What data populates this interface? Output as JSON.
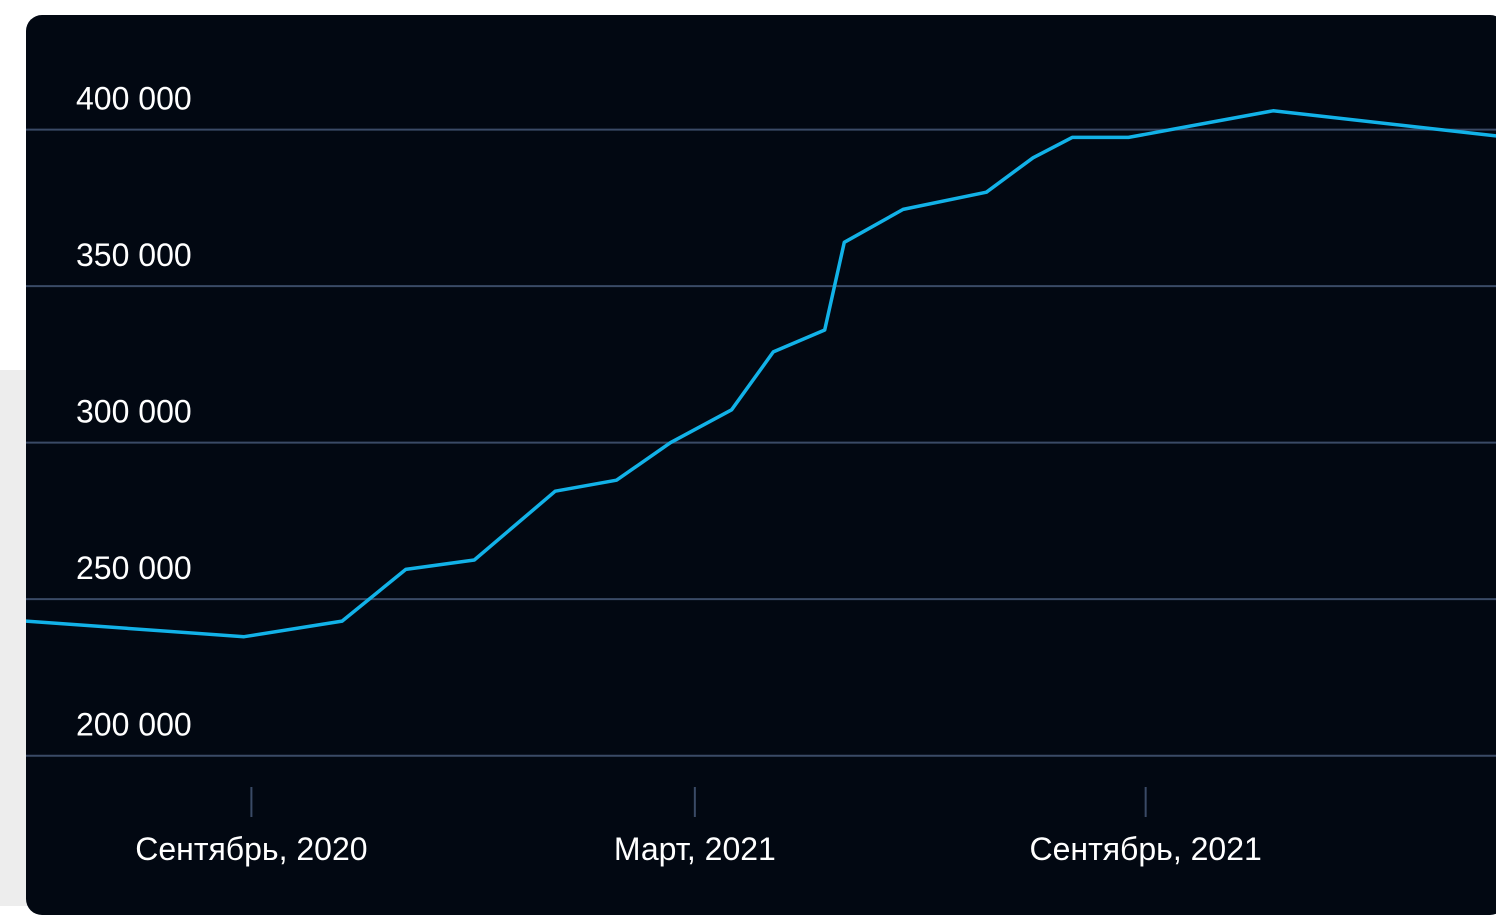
{
  "chart_data": {
    "type": "line",
    "title": "",
    "xlabel": "",
    "ylabel": "",
    "ylim": [
      190000,
      420000
    ],
    "yticks": [
      {
        "value": 400000,
        "label": "400 000"
      },
      {
        "value": 350000,
        "label": "350 000"
      },
      {
        "value": 300000,
        "label": "300 000"
      },
      {
        "value": 250000,
        "label": "250 000"
      },
      {
        "value": 200000,
        "label": "200 000"
      }
    ],
    "xlim": [
      "2020-06-01",
      "2022-01-22"
    ],
    "xticks": [
      {
        "value": "2020-09-01",
        "label": "Сентябрь, 2020"
      },
      {
        "value": "2021-03-01",
        "label": "Март, 2021"
      },
      {
        "value": "2021-09-01",
        "label": "Сентябрь, 2021"
      }
    ],
    "grid": true,
    "colors": {
      "background": "#020812",
      "grid": "#3a4a66",
      "line": "#12b2e8",
      "text": "#ffffff"
    },
    "series": [
      {
        "x": [
          "2020-06-01",
          "2020-08-29",
          "2020-10-08",
          "2020-11-03",
          "2020-12-01",
          "2021-01-03",
          "2021-01-28",
          "2021-02-19",
          "2021-03-16",
          "2021-04-02",
          "2021-04-23",
          "2021-05-01",
          "2021-05-25",
          "2021-06-28",
          "2021-07-17",
          "2021-08-02",
          "2021-08-25",
          "2021-10-23",
          "2022-01-22"
        ],
        "y": [
          243000,
          238000,
          243000,
          259500,
          262500,
          284500,
          288000,
          300000,
          310500,
          329000,
          336000,
          364000,
          374500,
          380000,
          391000,
          397500,
          397500,
          406000,
          398000
        ]
      }
    ]
  }
}
